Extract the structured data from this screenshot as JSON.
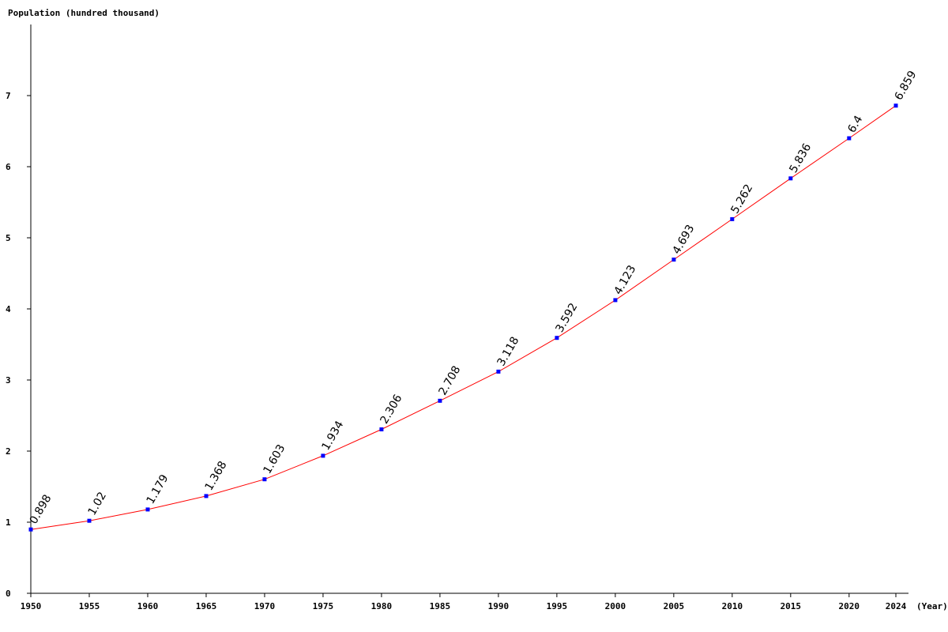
{
  "chart_data": {
    "type": "line",
    "ylabel": "Population (hundred thousand)",
    "xlabel": "(Year)",
    "x": [
      1950,
      1955,
      1960,
      1965,
      1970,
      1975,
      1980,
      1985,
      1990,
      1995,
      2000,
      2005,
      2010,
      2015,
      2020,
      2024
    ],
    "x_tick_labels": [
      "1950",
      "1955",
      "1960",
      "1965",
      "1970",
      "1975",
      "1980",
      "1985",
      "1990",
      "1995",
      "2000",
      "2005",
      "2010",
      "2015",
      "2020",
      "2024"
    ],
    "series": [
      {
        "values": [
          0.898,
          1.02,
          1.179,
          1.368,
          1.603,
          1.934,
          2.306,
          2.708,
          3.118,
          3.592,
          4.123,
          4.693,
          5.262,
          5.836,
          6.4,
          6.859
        ],
        "value_labels": [
          "0.898",
          "1.02",
          "1.179",
          "1.368",
          "1.603",
          "1.934",
          "2.306",
          "2.708",
          "3.118",
          "3.592",
          "4.123",
          "4.693",
          "5.262",
          "5.836",
          "6.4",
          "6.859"
        ],
        "line_color": "#ff0000",
        "marker_color": "#0000ff"
      }
    ],
    "y_ticks": [
      0,
      1,
      2,
      3,
      4,
      5,
      6,
      7
    ],
    "y_tick_labels": [
      "0",
      "1",
      "2",
      "3",
      "4",
      "5",
      "6",
      "7"
    ],
    "xlim": [
      1950,
      2024
    ],
    "ylim": [
      0,
      8
    ],
    "grid": false,
    "legend": "none"
  }
}
